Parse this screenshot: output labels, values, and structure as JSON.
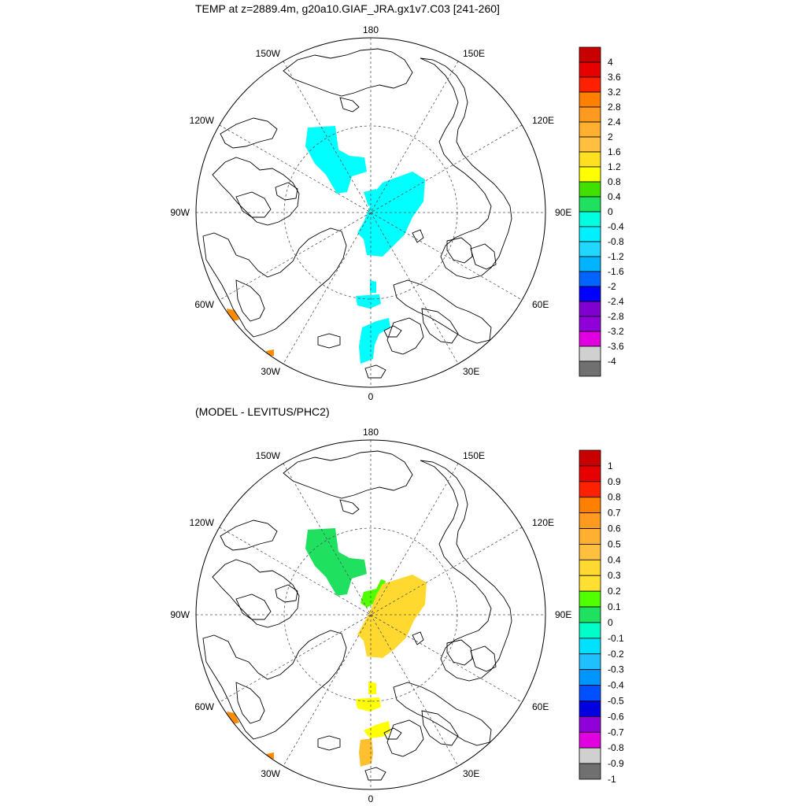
{
  "panels": [
    {
      "title": "TEMP at z=2889.4m, g20a10.GIAF_JRA.gx1v7.C03 [241-260]",
      "colorbar": {
        "labels": [
          "4",
          "3.6",
          "3.2",
          "2.8",
          "2.4",
          "2",
          "1.6",
          "1.2",
          "0.8",
          "0.4",
          "0",
          "-0.4",
          "-0.8",
          "-1.2",
          "-1.6",
          "-2",
          "-2.4",
          "-2.8",
          "-3.2",
          "-3.6",
          "-4"
        ],
        "colors": [
          "#c80000",
          "#e60000",
          "#ff2000",
          "#ff8000",
          "#ff9a20",
          "#ffb030",
          "#ffc040",
          "#ffe020",
          "#ffff00",
          "#40e000",
          "#20e060",
          "#00ffe0",
          "#00f0ff",
          "#20d8ff",
          "#00b4ff",
          "#0064ff",
          "#0000ff",
          "#8000d0",
          "#9000d8",
          "#e000e0",
          "#d0d0d0",
          "#707070"
        ]
      },
      "fills": [
        "cyan",
        "cyan",
        "cyan",
        "cyan",
        "orange",
        "orange"
      ]
    },
    {
      "title": "(MODEL - LEVITUS/PHC2)",
      "colorbar": {
        "labels": [
          "1",
          "0.9",
          "0.8",
          "0.7",
          "0.6",
          "0.5",
          "0.4",
          "0.3",
          "0.2",
          "0.1",
          "0",
          "-0.1",
          "-0.2",
          "-0.3",
          "-0.4",
          "-0.5",
          "-0.6",
          "-0.7",
          "-0.8",
          "-0.9",
          "-1"
        ],
        "colors": [
          "#c80000",
          "#e60000",
          "#ff2000",
          "#ff8000",
          "#ff9a20",
          "#ffb030",
          "#ffc040",
          "#ffd830",
          "#ffe030",
          "#50ff00",
          "#20e060",
          "#00ffc8",
          "#00e0ff",
          "#20c0ff",
          "#0096ff",
          "#0050ff",
          "#0000e0",
          "#9000d8",
          "#e000e0",
          "#d0d0d0",
          "#707070"
        ]
      }
    }
  ],
  "map_labels": {
    "top": "180",
    "bottom": "0",
    "left": "90W",
    "right": "90E",
    "l150": "150W",
    "l120": "120W",
    "l60": "60W",
    "l30": "30W",
    "r150": "150E",
    "r120": "120E",
    "r60": "60E",
    "r30": "30E"
  }
}
